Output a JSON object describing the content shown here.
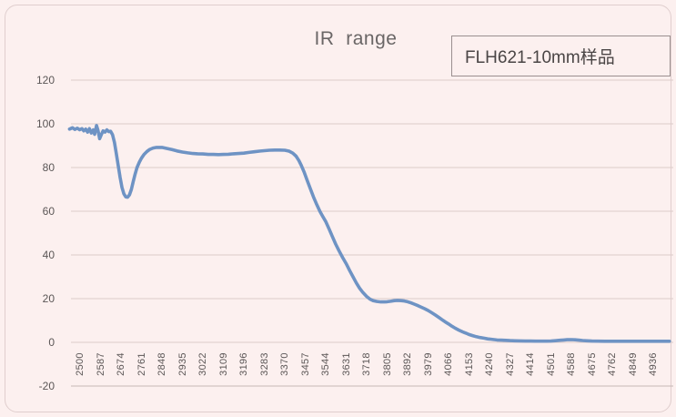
{
  "window": {
    "background": "#fcf0ef"
  },
  "colors": {
    "background": "#fcf0ef",
    "gridline": "#ddcbca",
    "baseline": "#c6b7b6",
    "series_line": "#6e93c4",
    "tick_text": "#5b5656",
    "title_text": "#6a6666",
    "legend_border": "#9a8f8f"
  },
  "chart_data": {
    "type": "line",
    "title": "IR  range",
    "legend": [
      "FLH621-10mm样品"
    ],
    "legend_position": "top-right-box",
    "xlabel": "",
    "ylabel": "",
    "grid": "horizontal",
    "ylim": [
      -20,
      120
    ],
    "yticks": [
      120,
      100,
      80,
      60,
      40,
      20,
      0,
      -20
    ],
    "categories": [
      2500,
      2587,
      2674,
      2761,
      2848,
      2935,
      3022,
      3109,
      3196,
      3283,
      3370,
      3457,
      3544,
      3631,
      3718,
      3805,
      3892,
      3979,
      4066,
      4153,
      4240,
      4327,
      4414,
      4501,
      4588,
      4675,
      4762,
      4849,
      4936
    ],
    "x_axis_range": [
      2455,
      5005
    ],
    "series": [
      {
        "name": "FLH621-10mm样品",
        "color": "#6e93c4",
        "points": [
          [
            2455,
            97.6
          ],
          [
            2468,
            98.2
          ],
          [
            2478,
            97.4
          ],
          [
            2488,
            98.0
          ],
          [
            2498,
            97.3
          ],
          [
            2508,
            97.8
          ],
          [
            2516,
            96.8
          ],
          [
            2524,
            97.6
          ],
          [
            2532,
            96.2
          ],
          [
            2540,
            97.8
          ],
          [
            2548,
            95.8
          ],
          [
            2556,
            97.2
          ],
          [
            2562,
            95.2
          ],
          [
            2570,
            99.2
          ],
          [
            2576,
            97.0
          ],
          [
            2583,
            93.2
          ],
          [
            2590,
            95.0
          ],
          [
            2598,
            96.8
          ],
          [
            2606,
            96.2
          ],
          [
            2614,
            97.2
          ],
          [
            2622,
            96.4
          ],
          [
            2630,
            96.6
          ],
          [
            2638,
            95.0
          ],
          [
            2646,
            91.5
          ],
          [
            2654,
            86.5
          ],
          [
            2662,
            81.0
          ],
          [
            2670,
            75.5
          ],
          [
            2678,
            71.0
          ],
          [
            2686,
            68.0
          ],
          [
            2694,
            66.6
          ],
          [
            2702,
            66.4
          ],
          [
            2710,
            67.5
          ],
          [
            2718,
            70.0
          ],
          [
            2726,
            73.5
          ],
          [
            2734,
            77.0
          ],
          [
            2742,
            80.0
          ],
          [
            2752,
            82.5
          ],
          [
            2761,
            84.3
          ],
          [
            2772,
            86.0
          ],
          [
            2784,
            87.3
          ],
          [
            2796,
            88.3
          ],
          [
            2810,
            88.9
          ],
          [
            2825,
            89.2
          ],
          [
            2848,
            89.2
          ],
          [
            2870,
            88.7
          ],
          [
            2890,
            88.2
          ],
          [
            2912,
            87.6
          ],
          [
            2935,
            87.1
          ],
          [
            2958,
            86.7
          ],
          [
            2980,
            86.4
          ],
          [
            3000,
            86.3
          ],
          [
            3022,
            86.2
          ],
          [
            3045,
            86.0
          ],
          [
            3066,
            86.0
          ],
          [
            3088,
            85.9
          ],
          [
            3109,
            86.0
          ],
          [
            3130,
            86.1
          ],
          [
            3152,
            86.3
          ],
          [
            3174,
            86.4
          ],
          [
            3196,
            86.6
          ],
          [
            3218,
            86.9
          ],
          [
            3240,
            87.2
          ],
          [
            3262,
            87.5
          ],
          [
            3283,
            87.7
          ],
          [
            3305,
            87.9
          ],
          [
            3327,
            88.0
          ],
          [
            3348,
            88.0
          ],
          [
            3370,
            87.9
          ],
          [
            3388,
            87.5
          ],
          [
            3404,
            86.6
          ],
          [
            3418,
            85.2
          ],
          [
            3430,
            83.2
          ],
          [
            3440,
            81.0
          ],
          [
            3452,
            78.0
          ],
          [
            3464,
            74.5
          ],
          [
            3478,
            70.5
          ],
          [
            3492,
            66.5
          ],
          [
            3506,
            63.0
          ],
          [
            3520,
            59.8
          ],
          [
            3532,
            57.5
          ],
          [
            3544,
            55.3
          ],
          [
            3558,
            52.0
          ],
          [
            3572,
            48.5
          ],
          [
            3586,
            45.0
          ],
          [
            3600,
            42.0
          ],
          [
            3616,
            38.8
          ],
          [
            3631,
            36.0
          ],
          [
            3646,
            32.8
          ],
          [
            3660,
            30.0
          ],
          [
            3674,
            27.2
          ],
          [
            3688,
            24.8
          ],
          [
            3702,
            22.8
          ],
          [
            3718,
            21.0
          ],
          [
            3732,
            19.8
          ],
          [
            3746,
            19.1
          ],
          [
            3762,
            18.7
          ],
          [
            3778,
            18.5
          ],
          [
            3794,
            18.5
          ],
          [
            3805,
            18.6
          ],
          [
            3820,
            18.8
          ],
          [
            3836,
            19.1
          ],
          [
            3850,
            19.2
          ],
          [
            3864,
            19.1
          ],
          [
            3878,
            18.9
          ],
          [
            3892,
            18.6
          ],
          [
            3906,
            18.1
          ],
          [
            3920,
            17.5
          ],
          [
            3936,
            16.8
          ],
          [
            3950,
            16.1
          ],
          [
            3964,
            15.4
          ],
          [
            3979,
            14.6
          ],
          [
            3994,
            13.6
          ],
          [
            4010,
            12.5
          ],
          [
            4026,
            11.3
          ],
          [
            4042,
            10.1
          ],
          [
            4056,
            9.1
          ],
          [
            4066,
            8.4
          ],
          [
            4080,
            7.4
          ],
          [
            4094,
            6.5
          ],
          [
            4110,
            5.6
          ],
          [
            4126,
            4.8
          ],
          [
            4140,
            4.2
          ],
          [
            4153,
            3.6
          ],
          [
            4168,
            3.1
          ],
          [
            4184,
            2.6
          ],
          [
            4200,
            2.2
          ],
          [
            4216,
            1.9
          ],
          [
            4232,
            1.6
          ],
          [
            4240,
            1.5
          ],
          [
            4256,
            1.3
          ],
          [
            4272,
            1.1
          ],
          [
            4290,
            1.0
          ],
          [
            4310,
            0.9
          ],
          [
            4327,
            0.8
          ],
          [
            4348,
            0.7
          ],
          [
            4370,
            0.65
          ],
          [
            4392,
            0.6
          ],
          [
            4414,
            0.6
          ],
          [
            4436,
            0.55
          ],
          [
            4458,
            0.55
          ],
          [
            4480,
            0.55
          ],
          [
            4501,
            0.6
          ],
          [
            4520,
            0.75
          ],
          [
            4540,
            0.95
          ],
          [
            4556,
            1.1
          ],
          [
            4570,
            1.2
          ],
          [
            4588,
            1.25
          ],
          [
            4604,
            1.15
          ],
          [
            4620,
            1.0
          ],
          [
            4636,
            0.85
          ],
          [
            4654,
            0.7
          ],
          [
            4675,
            0.6
          ],
          [
            4700,
            0.55
          ],
          [
            4730,
            0.5
          ],
          [
            4762,
            0.5
          ],
          [
            4800,
            0.5
          ],
          [
            4849,
            0.5
          ],
          [
            4890,
            0.5
          ],
          [
            4936,
            0.5
          ],
          [
            4970,
            0.5
          ],
          [
            5005,
            0.5
          ]
        ]
      }
    ]
  }
}
